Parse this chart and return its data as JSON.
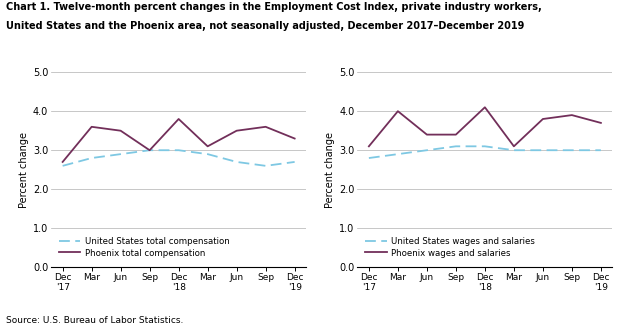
{
  "title_line1": "Chart 1. Twelve-month percent changes in the Employment Cost Index, private industry workers,",
  "title_line2": "United States and the Phoenix area, not seasonally adjusted, December 2017–December 2019",
  "ylabel": "Percent change",
  "source": "Source: U.S. Bureau of Labor Statistics.",
  "x_labels": [
    "Dec\n'17",
    "Mar",
    "Jun",
    "Sep",
    "Dec\n'18",
    "Mar",
    "Jun",
    "Sep",
    "Dec\n'19"
  ],
  "ylim": [
    0.0,
    5.0
  ],
  "yticks": [
    0.0,
    1.0,
    2.0,
    3.0,
    4.0,
    5.0
  ],
  "left_us_total_comp": [
    2.6,
    2.8,
    2.9,
    3.0,
    3.0,
    2.9,
    2.7,
    2.6,
    2.7
  ],
  "left_phoenix_total_comp": [
    2.7,
    3.6,
    3.5,
    3.0,
    3.8,
    3.1,
    3.5,
    3.6,
    3.3
  ],
  "right_us_wages_sal": [
    2.8,
    2.9,
    3.0,
    3.1,
    3.1,
    3.0,
    3.0,
    3.0,
    3.0
  ],
  "right_phoenix_wages_sal": [
    3.1,
    4.0,
    3.4,
    3.4,
    4.1,
    3.1,
    3.8,
    3.9,
    3.7
  ],
  "us_color": "#7ec8e3",
  "phoenix_color": "#722f5a",
  "left_legend1": "United States total compensation",
  "left_legend2": "Phoenix total compensation",
  "right_legend1": "United States wages and salaries",
  "right_legend2": "Phoenix wages and salaries"
}
